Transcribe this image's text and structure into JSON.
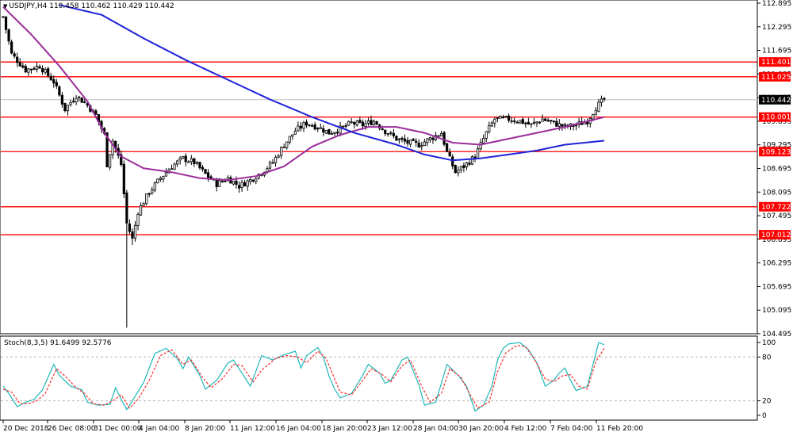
{
  "header": {
    "symbol": "USDJPY,H4",
    "ohlc": "110.458 110.462 110.429 110.442"
  },
  "stoch_header": {
    "label": "Stoch(8,3,5) 91.6499 92.5776"
  },
  "colors": {
    "background": "#ffffff",
    "candle": "#000000",
    "ma_fast": "#9b2d9b",
    "ma_slow": "#1f22d8",
    "level_line": "#ff0000",
    "level_box": "#ff0000",
    "current_price_box": "#000000",
    "stoch_main": "#1fb7b7",
    "stoch_signal": "#ff2a2a",
    "grid_dots": "#b8b8b8"
  },
  "chart_data": [
    {
      "type": "candlestick",
      "symbol": "USDJPY",
      "timeframe": "H4",
      "last_price": 110.442,
      "ylim": [
        104.495,
        112.895
      ],
      "y_ticks": [
        112.895,
        112.295,
        111.695,
        111.095,
        110.495,
        109.895,
        109.295,
        108.695,
        108.095,
        107.495,
        106.895,
        106.295,
        105.695,
        105.095,
        104.495
      ],
      "y_tick_labels": [
        "112.895",
        "112.295",
        "111.695",
        "111.095",
        "110.495",
        "109.895",
        "109.295",
        "108.695",
        "108.095",
        "107.495",
        "106.895",
        "106.295",
        "105.695",
        "105.095",
        "104.495"
      ],
      "x_tick_labels": [
        "20 Dec 2018",
        "26 Dec 08:00",
        "31 Dec 00:00",
        "4 Jan 04:00",
        "8 Jan 20:00",
        "11 Jan 12:00",
        "16 Jan 04:00",
        "18 Jan 20:00",
        "23 Jan 12:00",
        "28 Jan 04:00",
        "30 Jan 20:00",
        "4 Feb 12:00",
        "7 Feb 04:00",
        "11 Feb 20:00"
      ],
      "horizontal_levels": [
        {
          "value": 111.401,
          "label": "111.401"
        },
        {
          "value": 111.025,
          "label": "111.025"
        },
        {
          "value": 110.001,
          "label": "110.001"
        },
        {
          "value": 109.123,
          "label": "109.123"
        },
        {
          "value": 107.722,
          "label": "107.722"
        },
        {
          "value": 107.012,
          "label": "107.012"
        }
      ],
      "close_path": [
        [
          0,
          112.55
        ],
        [
          3,
          111.6
        ],
        [
          8,
          111.2
        ],
        [
          13,
          111.3
        ],
        [
          18,
          110.9
        ],
        [
          22,
          110.2
        ],
        [
          26,
          110.55
        ],
        [
          30,
          110.3
        ],
        [
          33,
          110.05
        ],
        [
          36,
          109.55
        ],
        [
          37,
          108.8
        ],
        [
          39,
          109.4
        ],
        [
          42,
          108.8
        ],
        [
          44,
          107.3
        ],
        [
          46,
          106.9
        ],
        [
          48,
          107.6
        ],
        [
          52,
          108.1
        ],
        [
          56,
          108.45
        ],
        [
          60,
          108.75
        ],
        [
          64,
          108.95
        ],
        [
          68,
          108.85
        ],
        [
          72,
          108.55
        ],
        [
          76,
          108.3
        ],
        [
          80,
          108.45
        ],
        [
          84,
          108.25
        ],
        [
          88,
          108.4
        ],
        [
          92,
          108.6
        ],
        [
          96,
          108.85
        ],
        [
          100,
          109.3
        ],
        [
          104,
          109.65
        ],
        [
          108,
          109.85
        ],
        [
          112,
          109.75
        ],
        [
          116,
          109.6
        ],
        [
          120,
          109.7
        ],
        [
          124,
          109.85
        ],
        [
          128,
          109.8
        ],
        [
          132,
          109.9
        ],
        [
          136,
          109.65
        ],
        [
          140,
          109.45
        ],
        [
          144,
          109.35
        ],
        [
          148,
          109.3
        ],
        [
          152,
          109.45
        ],
        [
          156,
          109.6
        ],
        [
          158,
          109.1
        ],
        [
          161,
          108.6
        ],
        [
          164,
          108.75
        ],
        [
          168,
          109.0
        ],
        [
          172,
          109.6
        ],
        [
          175,
          109.95
        ],
        [
          180,
          109.95
        ],
        [
          184,
          109.9
        ],
        [
          188,
          109.8
        ],
        [
          192,
          109.95
        ],
        [
          196,
          109.85
        ],
        [
          200,
          109.75
        ],
        [
          204,
          109.8
        ],
        [
          208,
          109.9
        ],
        [
          211,
          110.25
        ],
        [
          214,
          110.45
        ]
      ],
      "series": [
        {
          "name": "",
          "color": "#9b2d9b",
          "points": [
            [
              0,
              112.8
            ],
            [
              10,
              112.1
            ],
            [
              20,
              111.3
            ],
            [
              30,
              110.4
            ],
            [
              36,
              109.6
            ],
            [
              42,
              109.0
            ],
            [
              50,
              108.7
            ],
            [
              60,
              108.6
            ],
            [
              70,
              108.45
            ],
            [
              80,
              108.4
            ],
            [
              90,
              108.5
            ],
            [
              100,
              108.75
            ],
            [
              110,
              109.25
            ],
            [
              120,
              109.55
            ],
            [
              130,
              109.75
            ],
            [
              140,
              109.75
            ],
            [
              150,
              109.6
            ],
            [
              160,
              109.35
            ],
            [
              170,
              109.3
            ],
            [
              180,
              109.45
            ],
            [
              190,
              109.6
            ],
            [
              200,
              109.75
            ],
            [
              214,
              110.0
            ]
          ]
        },
        {
          "name": "",
          "color": "#1f22d8",
          "points": [
            [
              20,
              112.85
            ],
            [
              35,
              112.6
            ],
            [
              50,
              112.0
            ],
            [
              65,
              111.45
            ],
            [
              80,
              110.95
            ],
            [
              95,
              110.45
            ],
            [
              110,
              110.0
            ],
            [
              125,
              109.6
            ],
            [
              140,
              109.3
            ],
            [
              150,
              109.05
            ],
            [
              160,
              108.9
            ],
            [
              170,
              108.95
            ],
            [
              180,
              109.05
            ],
            [
              190,
              109.15
            ],
            [
              200,
              109.3
            ],
            [
              214,
              109.4
            ]
          ]
        }
      ]
    },
    {
      "type": "line",
      "name": "Stoch(8,3,5)",
      "ylim": [
        0,
        100
      ],
      "y_ticks": [
        100,
        80,
        20,
        0
      ],
      "y_tick_labels": [
        "100",
        "80",
        "20",
        "0"
      ],
      "levels": [
        80,
        20
      ],
      "series": [
        {
          "name": "main",
          "color": "#1fb7b7",
          "points": [
            [
              0,
              40
            ],
            [
              2,
              30
            ],
            [
              5,
              12
            ],
            [
              8,
              18
            ],
            [
              11,
              22
            ],
            [
              14,
              35
            ],
            [
              18,
              70
            ],
            [
              20,
              55
            ],
            [
              24,
              40
            ],
            [
              28,
              35
            ],
            [
              30,
              18
            ],
            [
              34,
              14
            ],
            [
              38,
              15
            ],
            [
              40,
              38
            ],
            [
              42,
              22
            ],
            [
              44,
              8
            ],
            [
              46,
              20
            ],
            [
              50,
              45
            ],
            [
              54,
              85
            ],
            [
              58,
              92
            ],
            [
              62,
              78
            ],
            [
              64,
              64
            ],
            [
              66,
              80
            ],
            [
              70,
              55
            ],
            [
              72,
              36
            ],
            [
              76,
              48
            ],
            [
              80,
              72
            ],
            [
              82,
              76
            ],
            [
              86,
              52
            ],
            [
              88,
              40
            ],
            [
              92,
              82
            ],
            [
              96,
              76
            ],
            [
              100,
              83
            ],
            [
              104,
              88
            ],
            [
              106,
              65
            ],
            [
              108,
              82
            ],
            [
              112,
              93
            ],
            [
              114,
              80
            ],
            [
              116,
              54
            ],
            [
              118,
              36
            ],
            [
              120,
              24
            ],
            [
              124,
              30
            ],
            [
              128,
              55
            ],
            [
              130,
              70
            ],
            [
              134,
              58
            ],
            [
              136,
              44
            ],
            [
              138,
              48
            ],
            [
              142,
              76
            ],
            [
              144,
              80
            ],
            [
              148,
              42
            ],
            [
              150,
              14
            ],
            [
              154,
              18
            ],
            [
              158,
              70
            ],
            [
              162,
              55
            ],
            [
              165,
              40
            ],
            [
              168,
              6
            ],
            [
              171,
              14
            ],
            [
              174,
              40
            ],
            [
              176,
              76
            ],
            [
              178,
              92
            ],
            [
              180,
              98
            ],
            [
              184,
              100
            ],
            [
              187,
              90
            ],
            [
              190,
              72
            ],
            [
              193,
              40
            ],
            [
              196,
              48
            ],
            [
              198,
              58
            ],
            [
              200,
              65
            ],
            [
              202,
              48
            ],
            [
              204,
              34
            ],
            [
              208,
              40
            ],
            [
              211,
              85
            ],
            [
              212,
              100
            ],
            [
              214,
              97
            ]
          ]
        },
        {
          "name": "signal",
          "color": "#ff2a2a",
          "points": [
            [
              0,
              36
            ],
            [
              3,
              32
            ],
            [
              6,
              16
            ],
            [
              9,
              16
            ],
            [
              12,
              20
            ],
            [
              15,
              30
            ],
            [
              19,
              64
            ],
            [
              22,
              54
            ],
            [
              26,
              38
            ],
            [
              29,
              30
            ],
            [
              32,
              16
            ],
            [
              36,
              14
            ],
            [
              39,
              20
            ],
            [
              42,
              28
            ],
            [
              45,
              10
            ],
            [
              48,
              22
            ],
            [
              52,
              48
            ],
            [
              56,
              82
            ],
            [
              60,
              90
            ],
            [
              64,
              70
            ],
            [
              67,
              76
            ],
            [
              71,
              52
            ],
            [
              74,
              38
            ],
            [
              78,
              50
            ],
            [
              82,
              70
            ],
            [
              85,
              68
            ],
            [
              89,
              46
            ],
            [
              92,
              62
            ],
            [
              97,
              78
            ],
            [
              101,
              82
            ],
            [
              105,
              80
            ],
            [
              108,
              72
            ],
            [
              112,
              88
            ],
            [
              115,
              78
            ],
            [
              118,
              50
            ],
            [
              120,
              32
            ],
            [
              124,
              28
            ],
            [
              128,
              48
            ],
            [
              131,
              64
            ],
            [
              135,
              56
            ],
            [
              138,
              46
            ],
            [
              142,
              68
            ],
            [
              145,
              76
            ],
            [
              149,
              40
            ],
            [
              152,
              18
            ],
            [
              156,
              30
            ],
            [
              159,
              64
            ],
            [
              163,
              52
            ],
            [
              166,
              30
            ],
            [
              169,
              10
            ],
            [
              173,
              18
            ],
            [
              176,
              60
            ],
            [
              179,
              86
            ],
            [
              183,
              96
            ],
            [
              186,
              94
            ],
            [
              189,
              78
            ],
            [
              193,
              50
            ],
            [
              196,
              46
            ],
            [
              199,
              54
            ],
            [
              202,
              56
            ],
            [
              205,
              40
            ],
            [
              208,
              36
            ],
            [
              211,
              74
            ],
            [
              214,
              92
            ]
          ]
        }
      ]
    }
  ]
}
